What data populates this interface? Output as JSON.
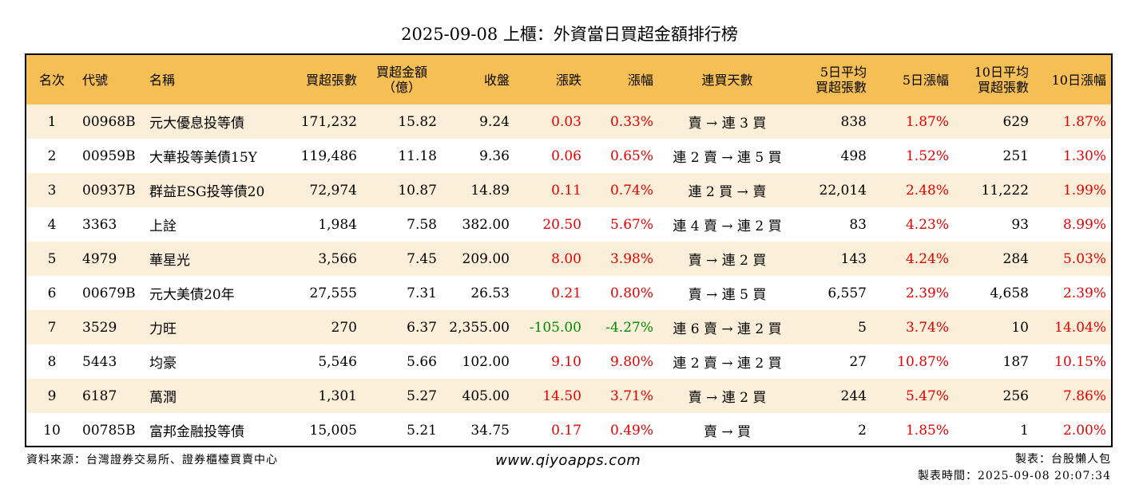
{
  "title": "2025-09-08 上櫃：外資當日買超金額排行榜",
  "colors": {
    "header_bg": "#f5bf55",
    "row_alt_bg": "#fcefd9",
    "up": "#e60000",
    "down": "#008a00"
  },
  "table": {
    "headers": {
      "rank": "名次",
      "code": "代號",
      "name": "名稱",
      "buy_shares": "買超張數",
      "buy_amount_1": "買超金額",
      "buy_amount_2": "（億）",
      "close": "收盤",
      "change": "漲跌",
      "pct": "漲幅",
      "streak": "連買天數",
      "avg5_1": "5日平均",
      "avg5_2": "買超張數",
      "pct5": "5日漲幅",
      "avg10_1": "10日平均",
      "avg10_2": "買超張數",
      "pct10": "10日漲幅"
    },
    "rows": [
      {
        "rank": "1",
        "code": "00968B",
        "name": "元大優息投等債",
        "buy_shares": "171,232",
        "buy_amount": "15.82",
        "close": "9.24",
        "change": "0.03",
        "pct": "0.33%",
        "streak": "賣 → 連 3 買",
        "avg5": "838",
        "pct5": "1.87%",
        "avg10": "629",
        "pct10": "1.87%"
      },
      {
        "rank": "2",
        "code": "00959B",
        "name": "大華投等美債15Y",
        "buy_shares": "119,486",
        "buy_amount": "11.18",
        "close": "9.36",
        "change": "0.06",
        "pct": "0.65%",
        "streak": "連 2 賣 → 連 5 買",
        "avg5": "498",
        "pct5": "1.52%",
        "avg10": "251",
        "pct10": "1.30%"
      },
      {
        "rank": "3",
        "code": "00937B",
        "name": "群益ESG投等債20",
        "buy_shares": "72,974",
        "buy_amount": "10.87",
        "close": "14.89",
        "change": "0.11",
        "pct": "0.74%",
        "streak": "連 2 買 → 賣",
        "avg5": "22,014",
        "pct5": "2.48%",
        "avg10": "11,222",
        "pct10": "1.99%"
      },
      {
        "rank": "4",
        "code": "3363",
        "name": "上詮",
        "buy_shares": "1,984",
        "buy_amount": "7.58",
        "close": "382.00",
        "change": "20.50",
        "pct": "5.67%",
        "streak": "連 4 賣 → 連 2 買",
        "avg5": "83",
        "pct5": "4.23%",
        "avg10": "93",
        "pct10": "8.99%"
      },
      {
        "rank": "5",
        "code": "4979",
        "name": "華星光",
        "buy_shares": "3,566",
        "buy_amount": "7.45",
        "close": "209.00",
        "change": "8.00",
        "pct": "3.98%",
        "streak": "賣 → 連 2 買",
        "avg5": "143",
        "pct5": "4.24%",
        "avg10": "284",
        "pct10": "5.03%"
      },
      {
        "rank": "6",
        "code": "00679B",
        "name": "元大美債20年",
        "buy_shares": "27,555",
        "buy_amount": "7.31",
        "close": "26.53",
        "change": "0.21",
        "pct": "0.80%",
        "streak": "賣 → 連 5 買",
        "avg5": "6,557",
        "pct5": "2.39%",
        "avg10": "4,658",
        "pct10": "2.39%"
      },
      {
        "rank": "7",
        "code": "3529",
        "name": "力旺",
        "buy_shares": "270",
        "buy_amount": "6.37",
        "close": "2,355.00",
        "change": "-105.00",
        "pct": "-4.27%",
        "streak": "連 6 賣 → 連 2 買",
        "avg5": "5",
        "pct5": "3.74%",
        "avg10": "10",
        "pct10": "14.04%"
      },
      {
        "rank": "8",
        "code": "5443",
        "name": "均豪",
        "buy_shares": "5,546",
        "buy_amount": "5.66",
        "close": "102.00",
        "change": "9.10",
        "pct": "9.80%",
        "streak": "連 2 賣 → 連 2 買",
        "avg5": "27",
        "pct5": "10.87%",
        "avg10": "187",
        "pct10": "10.15%"
      },
      {
        "rank": "9",
        "code": "6187",
        "name": "萬潤",
        "buy_shares": "1,301",
        "buy_amount": "5.27",
        "close": "405.00",
        "change": "14.50",
        "pct": "3.71%",
        "streak": "賣 → 連 2 買",
        "avg5": "244",
        "pct5": "5.47%",
        "avg10": "256",
        "pct10": "7.86%"
      },
      {
        "rank": "10",
        "code": "00785B",
        "name": "富邦金融投等債",
        "buy_shares": "15,005",
        "buy_amount": "5.21",
        "close": "34.75",
        "change": "0.17",
        "pct": "0.49%",
        "streak": "賣 → 買",
        "avg5": "2",
        "pct5": "1.85%",
        "avg10": "1",
        "pct10": "2.00%"
      }
    ]
  },
  "footer": {
    "source": "資料來源：台灣證券交易所、證券櫃檯買賣中心",
    "site": "www.qiyoapps.com",
    "maker": "製表：台股懶人包",
    "time": "製表時間：2025-09-08 20:07:34"
  }
}
